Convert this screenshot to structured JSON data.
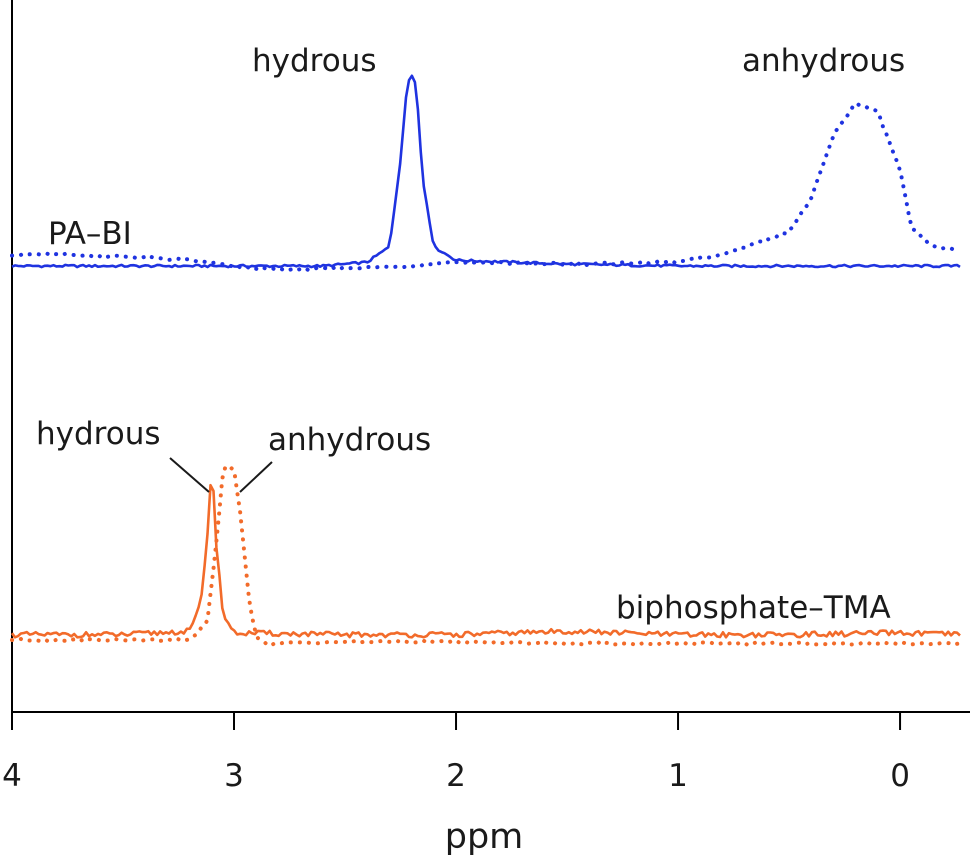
{
  "chart_data": {
    "type": "line",
    "xlabel": "ppm",
    "xlim": [
      4,
      -0.27
    ],
    "x_reversed": true,
    "x_ticks": [
      "4",
      "3",
      "2",
      "1",
      "0"
    ],
    "y_axis_shown": false,
    "grid": false,
    "colors": {
      "blue": "#1f33e0",
      "orange": "#f26b2a",
      "axis": "#000000"
    },
    "panels": [
      {
        "trace_label": "PA–BI",
        "color": "#1f33e0",
        "series": [
          {
            "style": "solid",
            "annotation": "hydrous",
            "x": [
              4.0,
              3.5,
              3.0,
              2.6,
              2.4,
              2.3,
              2.25,
              2.22,
              2.2,
              2.18,
              2.15,
              2.1,
              2.0,
              1.5,
              1.0,
              0.5,
              0.0,
              -0.27
            ],
            "y": [
              0.0,
              0.0,
              0.0,
              0.0,
              0.02,
              0.1,
              0.55,
              0.95,
              1.0,
              0.95,
              0.45,
              0.1,
              0.03,
              0.01,
              0.0,
              0.0,
              0.0,
              0.0
            ]
          },
          {
            "style": "dotted",
            "annotation": "anhydrous",
            "x": [
              4.0,
              3.8,
              3.5,
              3.2,
              3.0,
              2.8,
              2.5,
              2.2,
              2.0,
              1.5,
              1.0,
              0.8,
              0.6,
              0.5,
              0.4,
              0.3,
              0.2,
              0.1,
              0.0,
              -0.05,
              -0.15,
              -0.27
            ],
            "y": [
              0.06,
              0.06,
              0.05,
              0.03,
              0.0,
              -0.02,
              -0.01,
              0.0,
              0.02,
              0.01,
              0.02,
              0.06,
              0.14,
              0.18,
              0.35,
              0.68,
              0.85,
              0.8,
              0.5,
              0.2,
              0.1,
              0.08
            ]
          }
        ]
      },
      {
        "trace_label": "biphosphate–TMA",
        "color": "#f26b2a",
        "series": [
          {
            "style": "solid",
            "annotation": "hydrous",
            "x": [
              4.0,
              3.5,
              3.2,
              3.15,
              3.12,
              3.1,
              3.08,
              3.05,
              3.0,
              2.5,
              2.0,
              1.5,
              1.0,
              0.5,
              0.0,
              -0.27
            ],
            "y": [
              0.03,
              0.03,
              0.05,
              0.2,
              0.6,
              1.0,
              0.55,
              0.15,
              0.04,
              0.03,
              0.03,
              0.05,
              0.03,
              0.03,
              0.04,
              0.03
            ],
            "noise": 0.03
          },
          {
            "style": "dotted",
            "annotation": "anhydrous",
            "x": [
              4.0,
              3.5,
              3.2,
              3.12,
              3.08,
              3.05,
              3.03,
              3.0,
              2.97,
              2.93,
              2.9,
              2.85,
              2.5,
              2.0,
              1.5,
              1.0,
              0.5,
              0.0,
              -0.27
            ],
            "y": [
              0.0,
              0.0,
              0.0,
              0.1,
              0.55,
              0.95,
              1.0,
              0.97,
              0.7,
              0.2,
              0.02,
              -0.02,
              -0.01,
              -0.01,
              -0.02,
              -0.02,
              -0.02,
              -0.02,
              -0.02
            ]
          }
        ]
      }
    ]
  }
}
